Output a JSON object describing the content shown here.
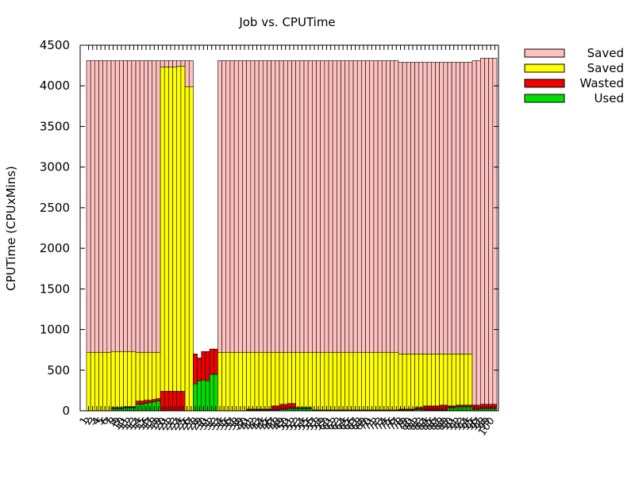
{
  "chart_data": {
    "type": "bar",
    "stacked": true,
    "title": "Job vs. CPUTime",
    "xlabel": "",
    "ylabel": "CPUTime (CPUxMins)",
    "ylim": [
      0,
      4500
    ],
    "yticks": [
      0,
      500,
      1000,
      1500,
      2000,
      2500,
      3000,
      3500,
      4000,
      4500
    ],
    "legend_position": "top-right, outside plot",
    "categories": [
      "1",
      "2",
      "3",
      "4",
      "5",
      "6",
      "7",
      "8",
      "9",
      "10",
      "11",
      "12",
      "13",
      "14",
      "15",
      "16",
      "17",
      "18",
      "19",
      "20",
      "21",
      "22",
      "23",
      "24",
      "25",
      "26",
      "27",
      "28",
      "29",
      "30",
      "31",
      "32",
      "33",
      "34",
      "35",
      "36",
      "37",
      "38",
      "39",
      "40",
      "41",
      "42",
      "43",
      "44",
      "45",
      "46",
      "47",
      "48",
      "49",
      "50",
      "51",
      "52",
      "53",
      "54",
      "55",
      "56",
      "57",
      "58",
      "59",
      "60",
      "61",
      "62",
      "63",
      "64",
      "65",
      "66",
      "67",
      "68",
      "69",
      "70",
      "71",
      "72",
      "73",
      "74",
      "75",
      "76",
      "77",
      "78",
      "79",
      "80",
      "81",
      "82",
      "83",
      "84",
      "85",
      "86",
      "87",
      "88",
      "89",
      "90",
      "91",
      "92",
      "93",
      "94",
      "95",
      "96",
      "97",
      "98",
      "99",
      "100"
    ],
    "series": [
      {
        "name": "Used",
        "color": "#00dd00",
        "values": [
          0,
          0,
          0,
          0,
          0,
          0,
          30,
          30,
          30,
          40,
          40,
          40,
          80,
          80,
          90,
          100,
          110,
          120,
          0,
          0,
          0,
          0,
          0,
          0,
          0,
          0,
          330,
          370,
          380,
          370,
          450,
          450,
          0,
          0,
          0,
          0,
          0,
          0,
          0,
          10,
          10,
          10,
          10,
          10,
          10,
          10,
          10,
          20,
          20,
          30,
          30,
          30,
          30,
          30,
          30,
          0,
          0,
          0,
          0,
          0,
          0,
          0,
          0,
          0,
          0,
          0,
          0,
          0,
          0,
          0,
          0,
          0,
          0,
          0,
          0,
          0,
          10,
          10,
          10,
          10,
          20,
          20,
          10,
          10,
          10,
          10,
          10,
          10,
          40,
          40,
          50,
          50,
          50,
          50,
          20,
          20,
          30,
          30,
          30,
          30
        ]
      },
      {
        "name": "Wasted",
        "color": "#ee0000",
        "values": [
          0,
          0,
          0,
          0,
          0,
          0,
          10,
          10,
          10,
          10,
          10,
          10,
          40,
          40,
          40,
          30,
          30,
          30,
          240,
          240,
          240,
          240,
          240,
          240,
          0,
          0,
          370,
          280,
          350,
          360,
          310,
          310,
          0,
          0,
          0,
          0,
          0,
          0,
          0,
          10,
          10,
          10,
          10,
          10,
          10,
          50,
          50,
          60,
          60,
          60,
          60,
          10,
          10,
          10,
          10,
          10,
          10,
          10,
          10,
          10,
          10,
          10,
          10,
          10,
          10,
          10,
          10,
          10,
          10,
          10,
          10,
          10,
          10,
          10,
          10,
          10,
          10,
          10,
          10,
          10,
          20,
          20,
          50,
          50,
          50,
          50,
          60,
          60,
          20,
          20,
          20,
          20,
          20,
          20,
          50,
          50,
          50,
          50,
          50,
          50
        ]
      },
      {
        "name": "Saved",
        "color": "#ffff00",
        "values": [
          720,
          720,
          720,
          720,
          720,
          720,
          690,
          690,
          690,
          680,
          680,
          680,
          600,
          600,
          590,
          590,
          580,
          570,
          3990,
          3990,
          3990,
          3990,
          4000,
          4000,
          3990,
          3990,
          0,
          0,
          0,
          0,
          0,
          0,
          720,
          720,
          720,
          720,
          720,
          720,
          720,
          700,
          700,
          700,
          700,
          700,
          700,
          660,
          660,
          640,
          640,
          630,
          630,
          680,
          680,
          680,
          680,
          710,
          710,
          710,
          710,
          710,
          710,
          710,
          710,
          710,
          710,
          710,
          710,
          710,
          710,
          710,
          710,
          710,
          710,
          710,
          710,
          710,
          680,
          680,
          680,
          680,
          660,
          660,
          640,
          640,
          640,
          640,
          630,
          630,
          640,
          640,
          630,
          630,
          630,
          630,
          0,
          0,
          0,
          0,
          0,
          0
        ]
      },
      {
        "name": "Saved",
        "color": "#ffc0c0",
        "values": [
          3590,
          3590,
          3590,
          3590,
          3590,
          3590,
          3580,
          3580,
          3580,
          3580,
          3580,
          3580,
          3590,
          3590,
          3590,
          3590,
          3590,
          3590,
          80,
          80,
          80,
          80,
          70,
          70,
          320,
          320,
          0,
          0,
          0,
          0,
          0,
          0,
          3590,
          3590,
          3590,
          3590,
          3590,
          3590,
          3590,
          3590,
          3590,
          3590,
          3590,
          3590,
          3590,
          3590,
          3590,
          3590,
          3590,
          3590,
          3590,
          3590,
          3590,
          3590,
          3590,
          3590,
          3590,
          3590,
          3590,
          3590,
          3590,
          3590,
          3590,
          3590,
          3590,
          3590,
          3590,
          3590,
          3590,
          3590,
          3590,
          3590,
          3590,
          3590,
          3590,
          3590,
          3590,
          3590,
          3590,
          3590,
          3590,
          3590,
          3590,
          3590,
          3590,
          3590,
          3590,
          3590,
          3590,
          3590,
          3590,
          3590,
          3590,
          3590,
          4240,
          4240,
          4260,
          4260,
          4260,
          4260
        ]
      }
    ]
  }
}
